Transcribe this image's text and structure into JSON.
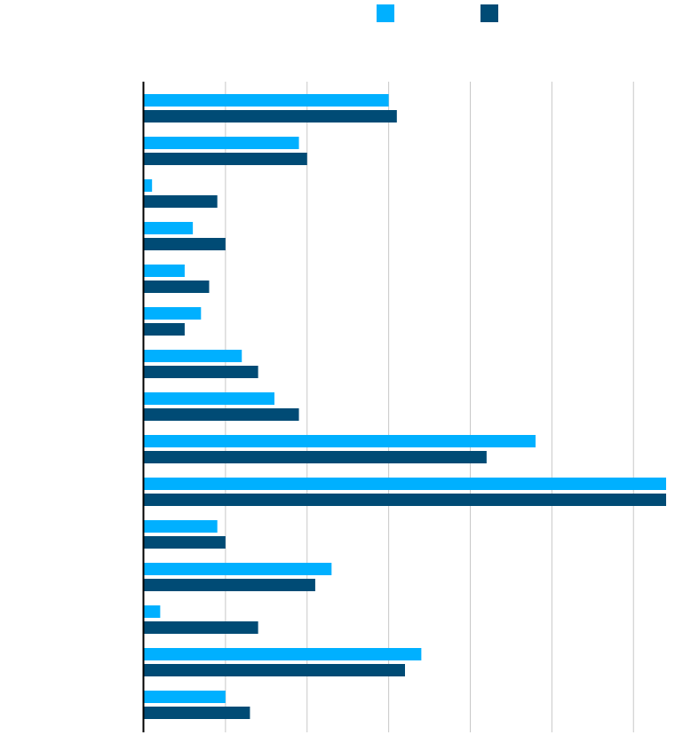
{
  "chart_data": {
    "type": "bar",
    "orientation": "horizontal",
    "title": "",
    "xlabel": "",
    "ylabel": "",
    "xlim": [
      0,
      64
    ],
    "grid": true,
    "legend": "top-center",
    "categories": [
      "",
      "",
      "",
      "",
      "",
      "",
      "",
      "",
      "",
      "",
      "",
      "",
      "",
      "",
      ""
    ],
    "series": [
      {
        "color": "#00b0ff",
        "values": [
          30,
          19,
          1,
          6,
          5,
          7,
          12,
          16,
          48,
          64,
          9,
          23,
          2,
          34,
          10
        ]
      },
      {
        "color": "#004b75",
        "values": [
          31,
          20,
          9,
          10,
          8,
          5,
          14,
          19,
          42,
          64,
          10,
          21,
          14,
          32,
          13
        ]
      }
    ]
  }
}
